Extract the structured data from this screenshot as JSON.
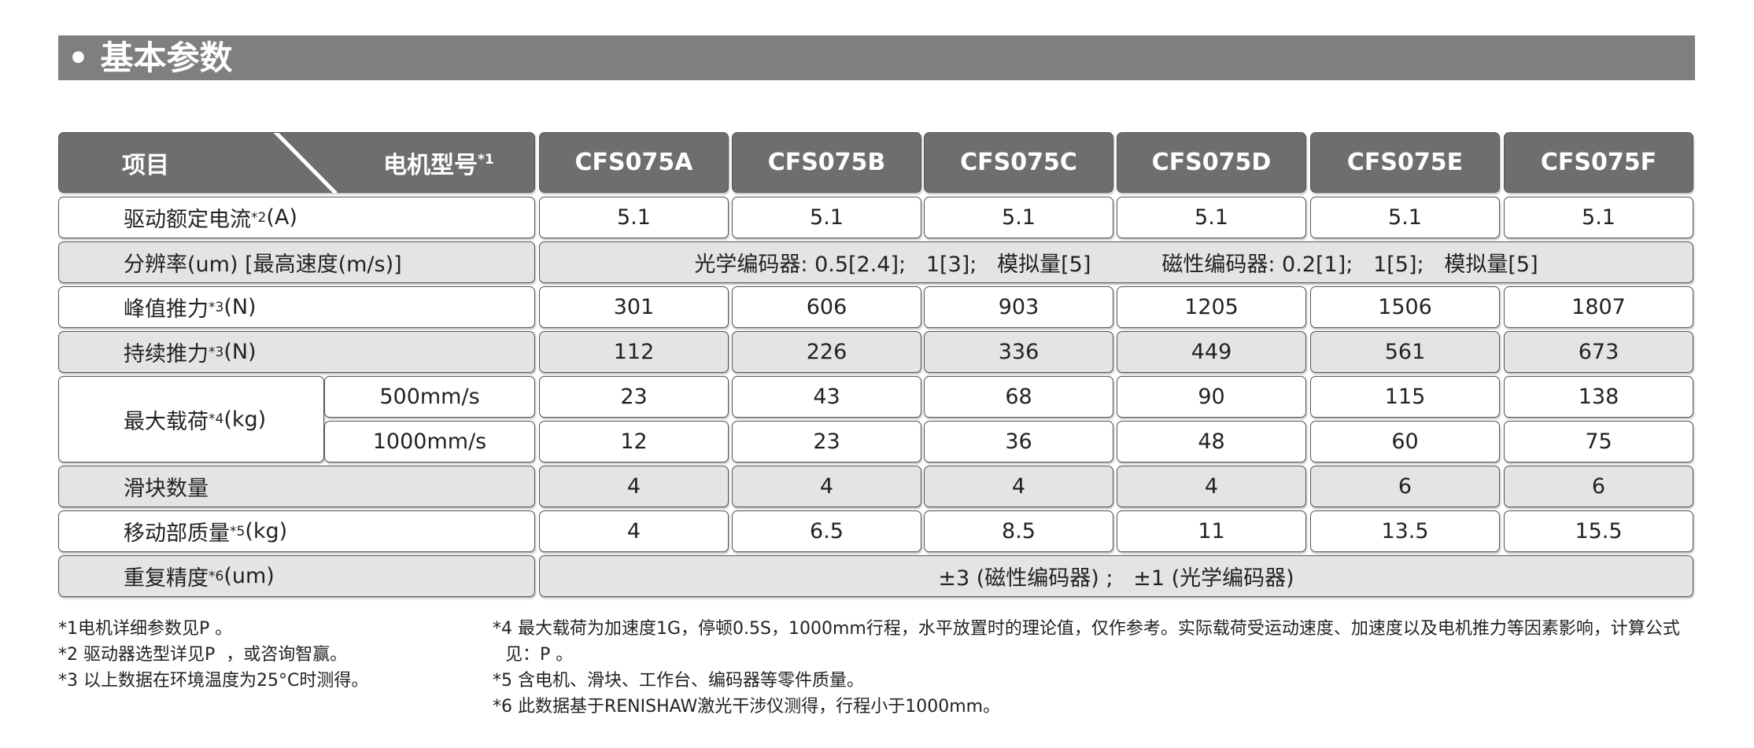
{
  "header": {
    "title": "• 基本参数"
  },
  "table": {
    "corner": {
      "left": "项目",
      "right": "电机型号",
      "right_sup": "*1"
    },
    "models": [
      "CFS075A",
      "CFS075B",
      "CFS075C",
      "CFS075D",
      "CFS075E",
      "CFS075F"
    ],
    "rows": [
      {
        "label": {
          "text": "驱动额定电流",
          "sup": "*2",
          "unit": "(A)"
        },
        "cells": [
          "5.1",
          "5.1",
          "5.1",
          "5.1",
          "5.1",
          "5.1"
        ]
      },
      {
        "label": {
          "text": "分辨率(um)  [最高速度(m/s)]"
        },
        "merged": [
          "光学编码器: 0.5[2.4];   1[3];   模拟量[5]",
          "磁性编码器: 0.2[1];   1[5];   模拟量[5]"
        ]
      },
      {
        "label": {
          "text": "峰值推力",
          "sup": "*3",
          "unit": "(N)"
        },
        "cells": [
          "301",
          "606",
          "903",
          "1205",
          "1506",
          "1807"
        ]
      },
      {
        "label": {
          "text": "持续推力",
          "sup": "*3",
          "unit": "(N)"
        },
        "cells": [
          "112",
          "226",
          "336",
          "449",
          "561",
          "673"
        ]
      },
      {
        "label": {
          "text": "最大载荷",
          "sup": "*4",
          "unit": "(kg)"
        },
        "sub": [
          {
            "label": "500mm/s",
            "cells": [
              "23",
              "43",
              "68",
              "90",
              "115",
              "138"
            ]
          },
          {
            "label": "1000mm/s",
            "cells": [
              "12",
              "23",
              "36",
              "48",
              "60",
              "75"
            ]
          }
        ]
      },
      {
        "label": {
          "text": "滑块数量"
        },
        "cells": [
          "4",
          "4",
          "4",
          "4",
          "6",
          "6"
        ]
      },
      {
        "label": {
          "text": "移动部质量",
          "sup": "*5",
          "unit": "(kg)"
        },
        "cells": [
          "4",
          "6.5",
          "8.5",
          "11",
          "13.5",
          "15.5"
        ]
      },
      {
        "label": {
          "text": "重复精度",
          "sup": "*6",
          "unit": "(um)"
        },
        "merged": [
          "±3 (磁性编码器) ;   ±1 (光学编码器)"
        ]
      }
    ]
  },
  "notes": {
    "left": [
      "*1电机详细参数见P 。",
      "*2 驱动器选型详见P  ，或咨询智赢。",
      "*3 以上数据在环境温度为25°C时测得。"
    ],
    "right": [
      "*4 最大载荷为加速度1G，停顿0.5S，1000mm行程，水平放置时的理论值，仅作参考。实际载荷受运动速度、加速度以及电机推力等因素影响，计算公式见：P 。",
      "*5 含电机、滑块、工作台、编码器等零件质量。",
      "*6 此数据基于RENISHAW激光干涉仪测得，行程小于1000mm。"
    ]
  }
}
